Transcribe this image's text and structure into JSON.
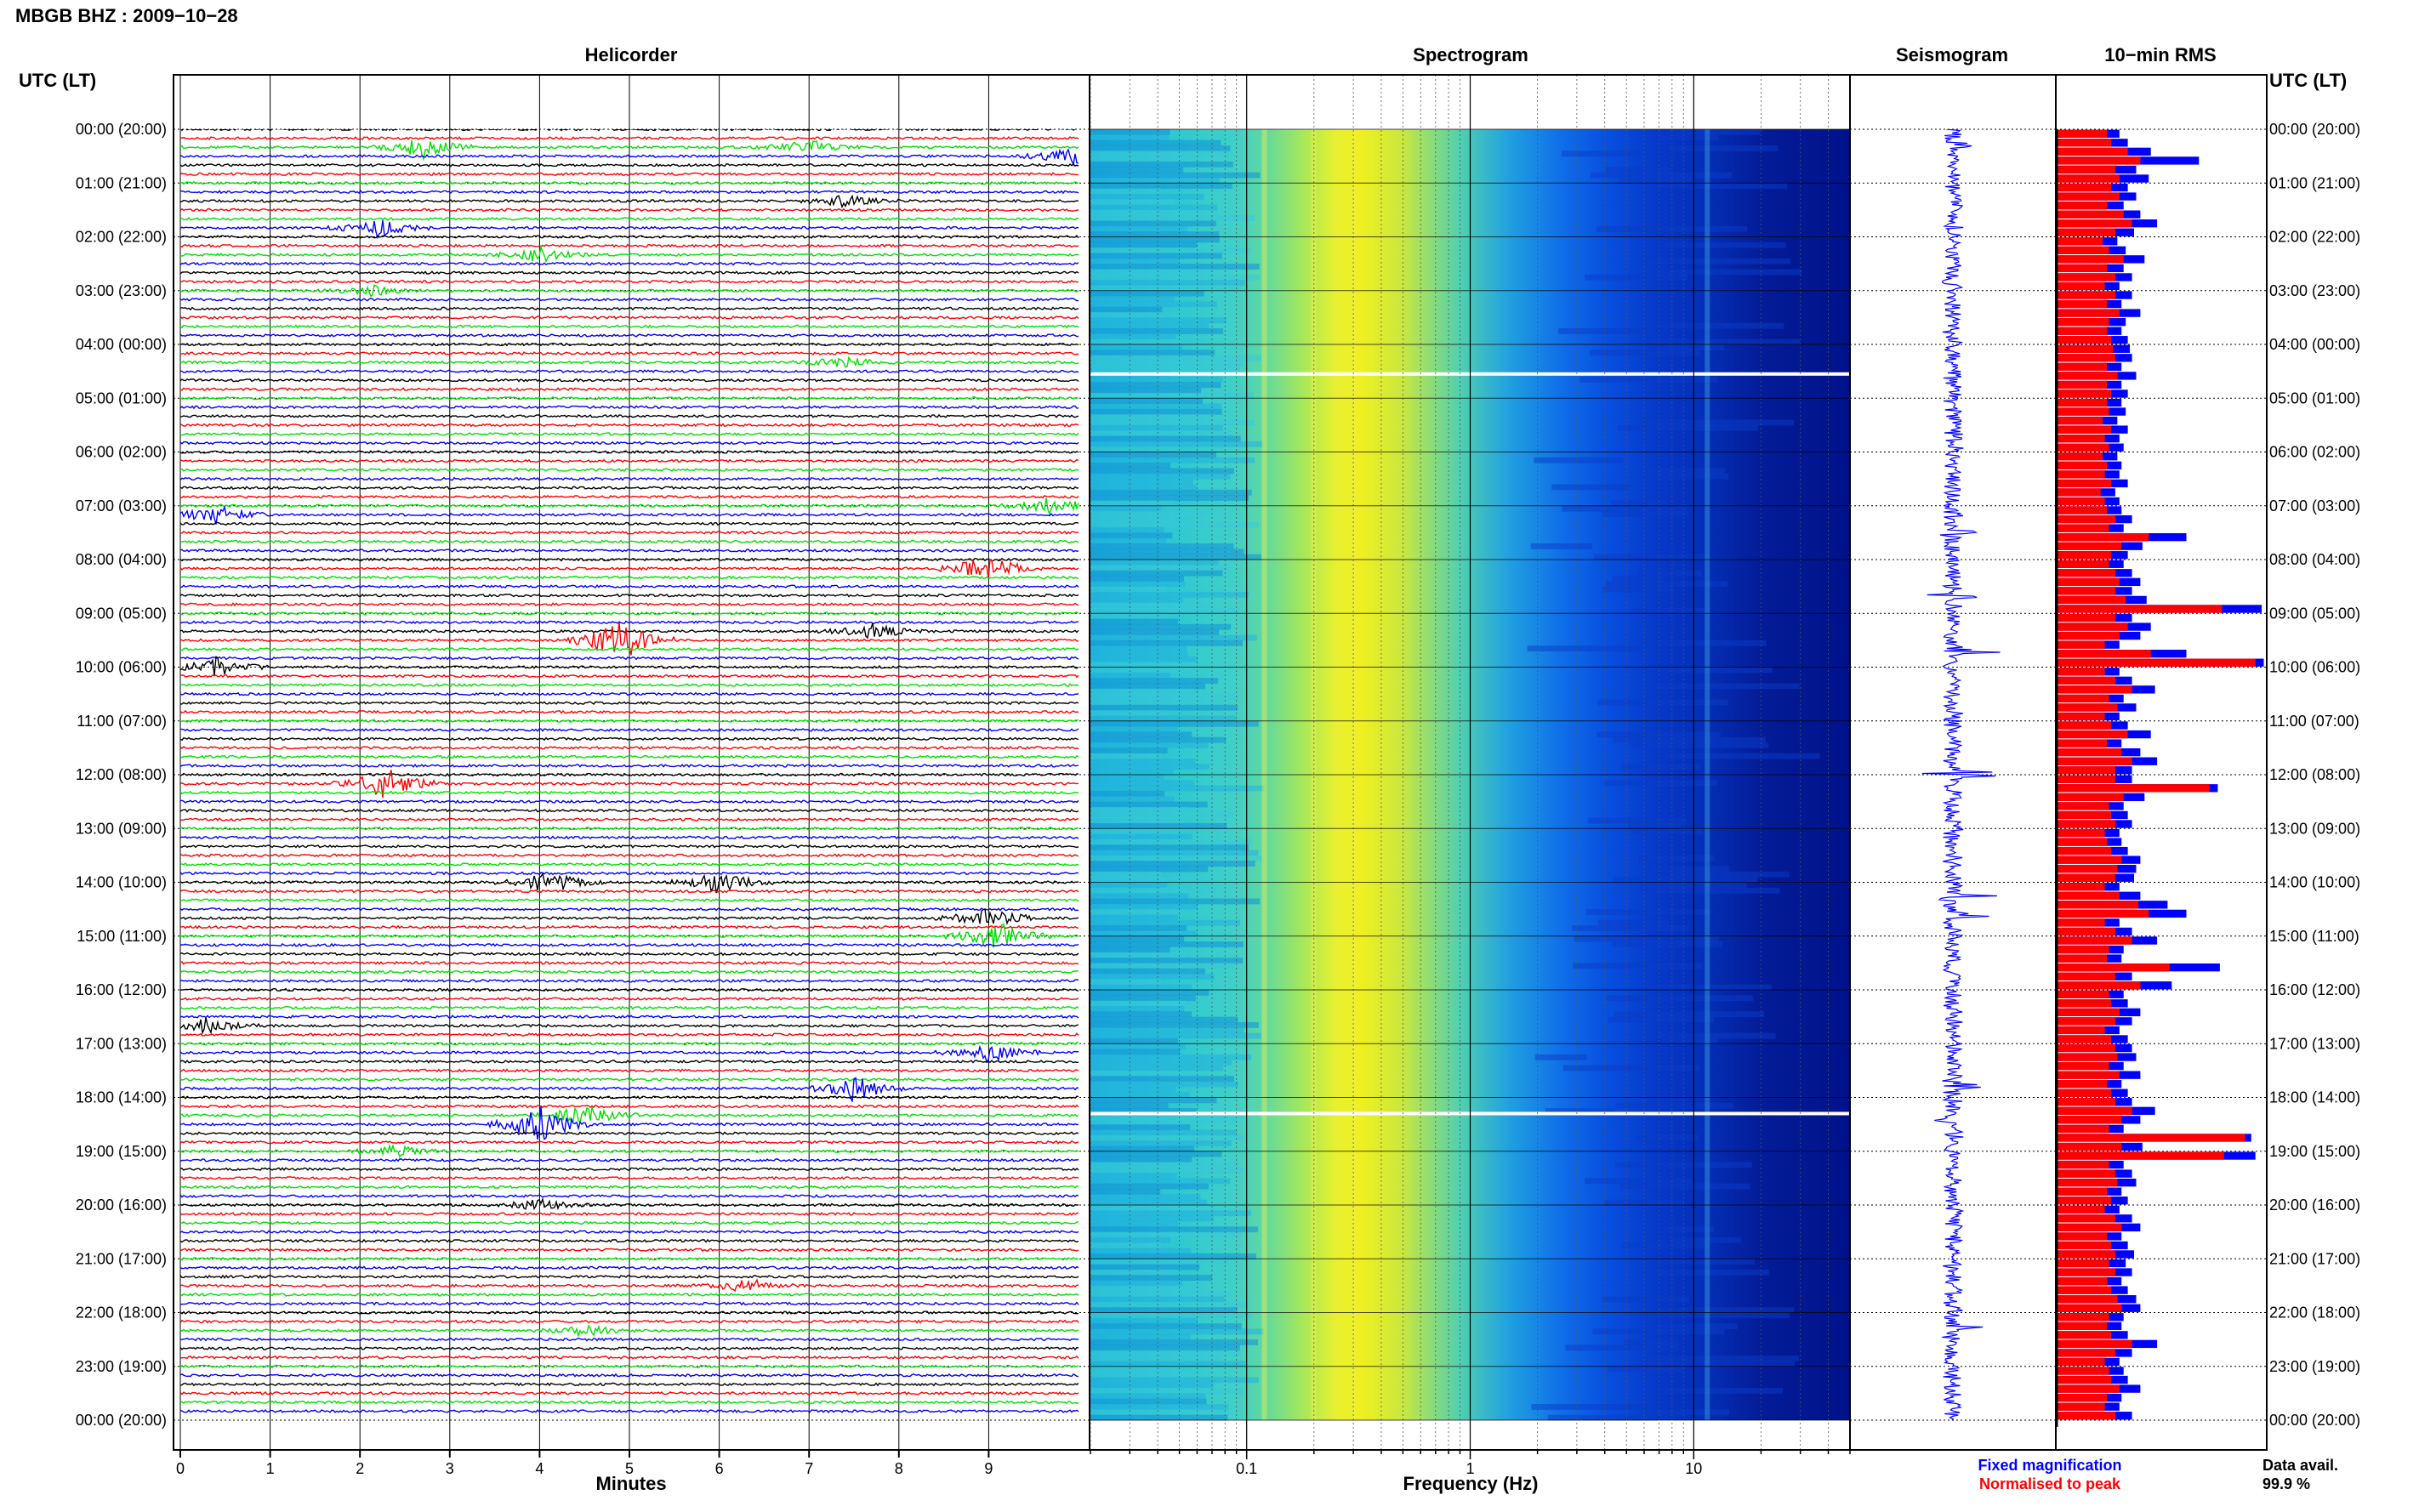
{
  "header": {
    "title": "MBGB BHZ : 2009−10−28",
    "utc_left": "UTC (LT)",
    "utc_right": "UTC (LT)"
  },
  "panels": {
    "helicorder": "Helicorder",
    "spectrogram": "Spectrogram",
    "seismogram": "Seismogram",
    "rms": "10−min RMS"
  },
  "time_labels": [
    "00:00 (20:00)",
    "01:00 (21:00)",
    "02:00 (22:00)",
    "03:00 (23:00)",
    "04:00 (00:00)",
    "05:00 (01:00)",
    "06:00 (02:00)",
    "07:00 (03:00)",
    "08:00 (04:00)",
    "09:00 (05:00)",
    "10:00 (06:00)",
    "11:00 (07:00)",
    "12:00 (08:00)",
    "13:00 (09:00)",
    "14:00 (10:00)",
    "15:00 (11:00)",
    "16:00 (12:00)",
    "17:00 (13:00)",
    "18:00 (14:00)",
    "19:00 (15:00)",
    "20:00 (16:00)",
    "21:00 (17:00)",
    "22:00 (18:00)",
    "23:00 (19:00)",
    "00:00 (20:00)"
  ],
  "footer": {
    "fixed_magnification": "Fixed magnification",
    "normalised_to_peak": "Normalised to peak",
    "data_avail_label": "Data avail.",
    "data_avail_value": "99.9 %"
  },
  "colors": {
    "trace_cycle": [
      "#000000",
      "#ff0000",
      "#00e000",
      "#0000ff"
    ],
    "fixed": "#0000ff",
    "normalised": "#ff0000",
    "spectrogram_low": "#00008b",
    "spectrogram_high": "#ffff00"
  },
  "chart_data": [
    {
      "type": "line",
      "title": "Helicorder",
      "xlabel": "Minutes",
      "xticks": [
        "0",
        "1",
        "2",
        "3",
        "4",
        "5",
        "6",
        "7",
        "8",
        "9"
      ],
      "xlim": [
        0,
        10
      ],
      "ylim": [
        0,
        24
      ],
      "rows_per_hour": 6,
      "events": [
        {
          "hour": 0,
          "row": 2,
          "minute": 2.7,
          "amp": 0.6
        },
        {
          "hour": 0,
          "row": 2,
          "minute": 7.0,
          "amp": 0.4
        },
        {
          "hour": 0,
          "row": 3,
          "minute": 9.9,
          "amp": 0.5
        },
        {
          "hour": 1,
          "row": 5,
          "minute": 2.2,
          "amp": 0.5
        },
        {
          "hour": 1,
          "row": 2,
          "minute": 7.4,
          "amp": 0.3
        },
        {
          "hour": 2,
          "row": 2,
          "minute": 4.0,
          "amp": 0.4
        },
        {
          "hour": 3,
          "row": 0,
          "minute": 2.1,
          "amp": 0.3
        },
        {
          "hour": 4,
          "row": 2,
          "minute": 7.4,
          "amp": 0.3
        },
        {
          "hour": 6,
          "row": 6,
          "minute": 9.7,
          "amp": 0.5
        },
        {
          "hour": 7,
          "row": 1,
          "minute": 0.4,
          "amp": 0.5
        },
        {
          "hour": 8,
          "row": 1,
          "minute": 9.0,
          "amp": 0.8
        },
        {
          "hour": 9,
          "row": 3,
          "minute": 4.9,
          "amp": 1.2
        },
        {
          "hour": 9,
          "row": 2,
          "minute": 7.7,
          "amp": 0.4
        },
        {
          "hour": 10,
          "row": 0,
          "minute": 0.4,
          "amp": 0.5
        },
        {
          "hour": 12,
          "row": 1,
          "minute": 2.3,
          "amp": 0.9
        },
        {
          "hour": 14,
          "row": 0,
          "minute": 4.1,
          "amp": 0.6
        },
        {
          "hour": 14,
          "row": 0,
          "minute": 6.0,
          "amp": 0.6
        },
        {
          "hour": 14,
          "row": 4,
          "minute": 9.0,
          "amp": 0.6
        },
        {
          "hour": 15,
          "row": 0,
          "minute": 9.1,
          "amp": 0.8
        },
        {
          "hour": 16,
          "row": 4,
          "minute": 0.3,
          "amp": 0.4
        },
        {
          "hour": 17,
          "row": 1,
          "minute": 9.0,
          "amp": 0.5
        },
        {
          "hour": 17,
          "row": 5,
          "minute": 7.5,
          "amp": 0.7
        },
        {
          "hour": 18,
          "row": 3,
          "minute": 4.0,
          "amp": 1.0
        },
        {
          "hour": 18,
          "row": 2,
          "minute": 4.5,
          "amp": 0.6
        },
        {
          "hour": 19,
          "row": 0,
          "minute": 2.4,
          "amp": 0.3
        },
        {
          "hour": 20,
          "row": 0,
          "minute": 4.0,
          "amp": 0.3
        },
        {
          "hour": 21,
          "row": 3,
          "minute": 6.3,
          "amp": 0.4
        },
        {
          "hour": 22,
          "row": 2,
          "minute": 4.5,
          "amp": 0.3
        }
      ]
    },
    {
      "type": "heatmap",
      "title": "Spectrogram",
      "xlabel": "Frequency (Hz)",
      "xscale": "log",
      "xlim": [
        0.02,
        50
      ],
      "xticks": [
        "0.1",
        "1",
        "10"
      ],
      "ylim": [
        0,
        24
      ],
      "gaps_hours": [
        4.55,
        18.3
      ],
      "spectral_peaks_hz": [
        0.12,
        0.2,
        0.3,
        11.5
      ]
    },
    {
      "type": "line",
      "title": "Seismogram",
      "ylim": [
        0,
        24
      ],
      "spikes": [
        {
          "hour": 0.3,
          "amp": 0.4
        },
        {
          "hour": 7.5,
          "amp": 0.6
        },
        {
          "hour": 8.7,
          "amp": 0.9
        },
        {
          "hour": 9.7,
          "amp": 0.7
        },
        {
          "hour": 12.0,
          "amp": 0.8
        },
        {
          "hour": 14.3,
          "amp": 0.8
        },
        {
          "hour": 14.6,
          "amp": 0.6
        },
        {
          "hour": 17.8,
          "amp": 0.7
        },
        {
          "hour": 18.4,
          "amp": 1.0
        },
        {
          "hour": 22.3,
          "amp": 0.4
        }
      ]
    },
    {
      "type": "bar",
      "title": "10−min RMS",
      "orientation": "horizontal",
      "ylim": [
        0,
        24
      ],
      "series": [
        {
          "name": "Fixed magnification",
          "values": [
            0.3,
            0.34,
            0.45,
            0.68,
            0.38,
            0.44,
            0.34,
            0.38,
            0.32,
            0.4,
            0.48,
            0.37,
            0.29,
            0.33,
            0.42,
            0.32,
            0.36,
            0.3,
            0.36,
            0.31,
            0.4,
            0.33,
            0.31,
            0.34,
            0.35,
            0.36,
            0.31,
            0.38,
            0.31,
            0.34,
            0.31,
            0.33,
            0.29,
            0.34,
            0.3,
            0.32,
            0.29,
            0.31,
            0.3,
            0.34,
            0.28,
            0.3,
            0.31,
            0.36,
            0.32,
            0.62,
            0.41,
            0.34,
            0.32,
            0.36,
            0.4,
            0.36,
            0.43,
            0.98,
            0.36,
            0.45,
            0.4,
            0.3,
            0.62,
            0.99,
            0.3,
            0.36,
            0.47,
            0.32,
            0.38,
            0.3,
            0.34,
            0.45,
            0.31,
            0.4,
            0.48,
            0.36,
            0.36,
            0.77,
            0.42,
            0.32,
            0.34,
            0.36,
            0.3,
            0.31,
            0.34,
            0.4,
            0.38,
            0.37,
            0.3,
            0.4,
            0.53,
            0.62,
            0.3,
            0.36,
            0.48,
            0.32,
            0.31,
            0.78,
            0.36,
            0.55,
            0.32,
            0.34,
            0.4,
            0.36,
            0.3,
            0.34,
            0.36,
            0.38,
            0.32,
            0.4,
            0.31,
            0.34,
            0.36,
            0.47,
            0.4,
            0.32,
            0.93,
            0.41,
            0.95,
            0.32,
            0.36,
            0.38,
            0.31,
            0.34,
            0.3,
            0.36,
            0.4,
            0.31,
            0.34,
            0.37,
            0.33,
            0.36,
            0.31,
            0.34,
            0.38,
            0.4,
            0.32,
            0.31,
            0.34,
            0.48,
            0.36,
            0.3,
            0.32,
            0.34,
            0.4,
            0.31,
            0.3,
            0.36
          ]
        },
        {
          "name": "Normalised to peak",
          "values": [
            0.24,
            0.26,
            0.34,
            0.4,
            0.28,
            0.3,
            0.26,
            0.3,
            0.24,
            0.32,
            0.36,
            0.28,
            0.22,
            0.25,
            0.32,
            0.24,
            0.28,
            0.23,
            0.28,
            0.24,
            0.3,
            0.25,
            0.24,
            0.26,
            0.27,
            0.28,
            0.24,
            0.29,
            0.24,
            0.26,
            0.24,
            0.25,
            0.22,
            0.26,
            0.23,
            0.25,
            0.22,
            0.24,
            0.23,
            0.26,
            0.21,
            0.23,
            0.24,
            0.28,
            0.25,
            0.44,
            0.31,
            0.26,
            0.25,
            0.28,
            0.3,
            0.28,
            0.33,
            0.79,
            0.28,
            0.34,
            0.3,
            0.23,
            0.45,
            0.95,
            0.23,
            0.28,
            0.36,
            0.25,
            0.29,
            0.23,
            0.26,
            0.34,
            0.24,
            0.31,
            0.36,
            0.28,
            0.28,
            0.73,
            0.32,
            0.25,
            0.26,
            0.28,
            0.23,
            0.24,
            0.26,
            0.31,
            0.29,
            0.28,
            0.23,
            0.3,
            0.39,
            0.44,
            0.23,
            0.28,
            0.36,
            0.25,
            0.24,
            0.54,
            0.28,
            0.4,
            0.25,
            0.26,
            0.3,
            0.28,
            0.23,
            0.26,
            0.28,
            0.29,
            0.25,
            0.3,
            0.24,
            0.26,
            0.28,
            0.36,
            0.31,
            0.25,
            0.9,
            0.31,
            0.8,
            0.25,
            0.28,
            0.29,
            0.24,
            0.26,
            0.23,
            0.28,
            0.31,
            0.24,
            0.26,
            0.28,
            0.25,
            0.28,
            0.24,
            0.26,
            0.29,
            0.31,
            0.25,
            0.24,
            0.26,
            0.36,
            0.28,
            0.23,
            0.25,
            0.26,
            0.3,
            0.24,
            0.23,
            0.28
          ]
        }
      ]
    }
  ]
}
